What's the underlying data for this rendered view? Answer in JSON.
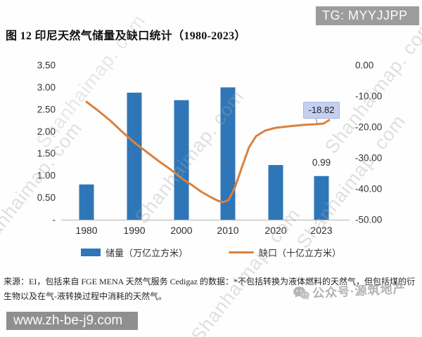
{
  "badges": {
    "telegram": "TG: MYYJJPP",
    "website": "www.zh-be-j9.com"
  },
  "watermarks": {
    "diagonal": "Shanhaimap. com",
    "wechat": "公众号·源筑地产"
  },
  "figure": {
    "title": "图 12 印尼天然气储量及缺口统计（1980-2023）",
    "source_note": "来源：EI，包括来自 FGE MENA 天然气服务 Cedigaz 的数据：*不包括转换为液体燃料的天然气，但包括煤的衍生物以及在气-液转换过程中消耗的天然气。"
  },
  "chart_data": {
    "type": "bar+line",
    "categories": [
      "1980",
      "1990",
      "2000",
      "2010",
      "2020",
      "2023"
    ],
    "series": [
      {
        "name": "储量（万亿立方米）",
        "type": "bar",
        "axis": "left",
        "color": "#2e76b8",
        "values": [
          0.8,
          2.88,
          2.71,
          3.0,
          1.24,
          0.99
        ]
      },
      {
        "name": "缺口（十亿立方米）",
        "type": "line",
        "axis": "right",
        "color": "#d9813f",
        "values": [
          -11.8,
          -25.0,
          -36.5,
          -43.6,
          -20.3,
          -18.82
        ]
      }
    ],
    "left_axis": {
      "min": 0,
      "max": 3.5,
      "ticks": [
        "3.50",
        "3.00",
        "2.50",
        "2.00",
        "1.50",
        "1.00",
        "0.50",
        "-"
      ]
    },
    "right_axis": {
      "min": -50,
      "max": 0,
      "ticks": [
        "0.00",
        "-10.00",
        "-20.00",
        "-30.00",
        "-40.00",
        "-50.00"
      ]
    },
    "data_labels": {
      "gap_2023": "-18.82",
      "reserve_2023": "0.99"
    },
    "legend_position": "bottom",
    "grid": false
  }
}
